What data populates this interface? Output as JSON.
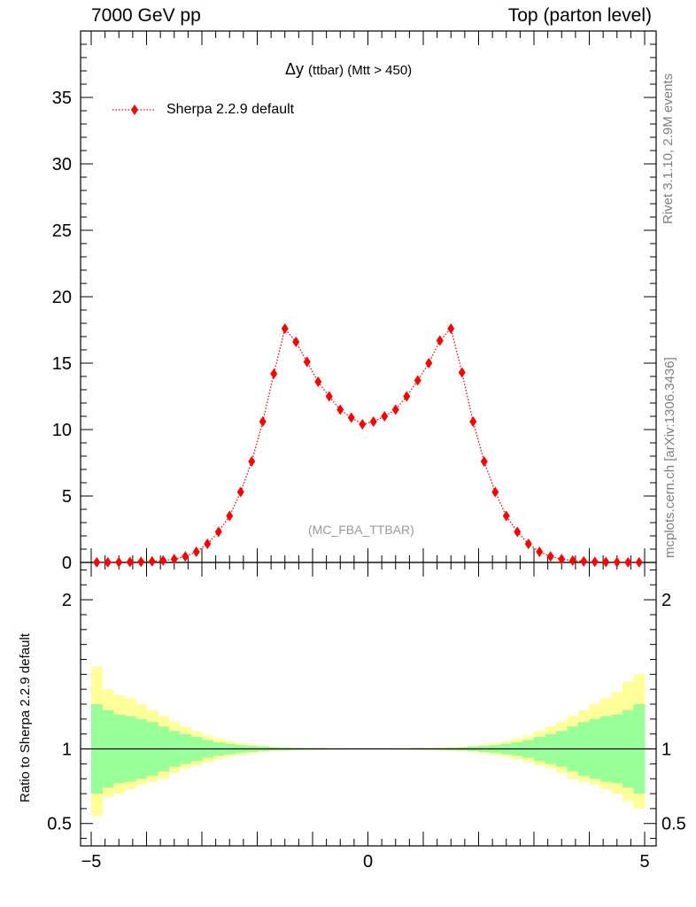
{
  "header": {
    "left": "7000 GeV pp",
    "right": "Top (parton level)"
  },
  "side": {
    "rivet": "Rivet 3.1.10,  2.9M events",
    "mcplots": "mcplots.cern.ch [arXiv:1306.3436]"
  },
  "title": {
    "main": "Δy",
    "rest": "(ttbar) (Mtt > 450)"
  },
  "watermark": "(MC_FBA_TTBAR)",
  "colors": {
    "marker": "#ff0000",
    "band_inner": "#99ff99",
    "band_outer": "#ffff99",
    "axis": "#000000"
  },
  "chart_data": [
    {
      "type": "line",
      "name": "main",
      "xlim": [
        -5,
        5
      ],
      "ylim": [
        0,
        40
      ],
      "yticks": [
        0,
        5,
        10,
        15,
        20,
        25,
        30,
        35
      ],
      "legend_position": "top-left",
      "series": [
        {
          "name": "Sherpa 2.2.9 default",
          "marker": "diamond",
          "line": "dotted",
          "x": [
            -4.9,
            -4.7,
            -4.5,
            -4.3,
            -4.1,
            -3.9,
            -3.7,
            -3.5,
            -3.3,
            -3.1,
            -2.9,
            -2.7,
            -2.5,
            -2.3,
            -2.1,
            -1.9,
            -1.7,
            -1.5,
            -1.3,
            -1.1,
            -0.9,
            -0.7,
            -0.5,
            -0.3,
            -0.1,
            0.1,
            0.3,
            0.5,
            0.7,
            0.9,
            1.1,
            1.3,
            1.5,
            1.7,
            1.9,
            2.1,
            2.3,
            2.5,
            2.7,
            2.9,
            3.1,
            3.3,
            3.5,
            3.7,
            3.9,
            4.1,
            4.3,
            4.5,
            4.7,
            4.9
          ],
          "values": [
            0.01,
            0.01,
            0.02,
            0.03,
            0.05,
            0.08,
            0.14,
            0.25,
            0.45,
            0.8,
            1.4,
            2.3,
            3.5,
            5.3,
            7.6,
            10.6,
            14.2,
            17.6,
            16.6,
            15.1,
            13.6,
            12.5,
            11.5,
            10.9,
            10.4,
            10.6,
            11.0,
            11.5,
            12.5,
            13.7,
            15.0,
            16.7,
            17.6,
            14.3,
            10.6,
            7.6,
            5.3,
            3.5,
            2.3,
            1.4,
            0.8,
            0.45,
            0.25,
            0.14,
            0.08,
            0.05,
            0.03,
            0.02,
            0.01,
            0.01
          ]
        }
      ]
    },
    {
      "type": "area",
      "name": "ratio",
      "ylabel": "Ratio to Sherpa 2.2.9 default",
      "xlim": [
        -5,
        5
      ],
      "ylim": [
        0.35,
        2.25
      ],
      "yticks": [
        0.5,
        1,
        2
      ],
      "xticks": [
        -5,
        0,
        5
      ],
      "bin_edges": [
        -5.0,
        -4.8,
        -4.6,
        -4.4,
        -4.2,
        -4.0,
        -3.8,
        -3.6,
        -3.4,
        -3.2,
        -3.0,
        -2.8,
        -2.6,
        -2.4,
        -2.2,
        -2.0,
        -1.8,
        -1.6,
        -1.4,
        -1.2,
        -1.0,
        -0.8,
        -0.6,
        -0.4,
        -0.2,
        0.0,
        0.2,
        0.4,
        0.6,
        0.8,
        1.0,
        1.2,
        1.4,
        1.6,
        1.8,
        2.0,
        2.2,
        2.4,
        2.6,
        2.8,
        3.0,
        3.2,
        3.4,
        3.6,
        3.8,
        4.0,
        4.2,
        4.4,
        4.6,
        4.8,
        5.0
      ],
      "reference_line": 1,
      "series": [
        {
          "name": "inner band",
          "lower": [
            0.7,
            0.74,
            0.77,
            0.78,
            0.8,
            0.82,
            0.85,
            0.88,
            0.9,
            0.92,
            0.94,
            0.955,
            0.965,
            0.975,
            0.98,
            0.985,
            0.99,
            0.992,
            0.994,
            0.995,
            0.996,
            0.997,
            0.997,
            0.998,
            0.998,
            0.998,
            0.998,
            0.997,
            0.997,
            0.996,
            0.995,
            0.994,
            0.992,
            0.99,
            0.985,
            0.98,
            0.975,
            0.965,
            0.955,
            0.94,
            0.92,
            0.9,
            0.88,
            0.85,
            0.82,
            0.8,
            0.78,
            0.77,
            0.74,
            0.7
          ],
          "upper": [
            1.3,
            1.26,
            1.23,
            1.22,
            1.2,
            1.18,
            1.15,
            1.12,
            1.1,
            1.08,
            1.06,
            1.045,
            1.035,
            1.025,
            1.02,
            1.015,
            1.01,
            1.008,
            1.006,
            1.005,
            1.004,
            1.003,
            1.003,
            1.002,
            1.002,
            1.002,
            1.002,
            1.003,
            1.003,
            1.004,
            1.005,
            1.006,
            1.008,
            1.01,
            1.015,
            1.02,
            1.025,
            1.035,
            1.045,
            1.06,
            1.08,
            1.1,
            1.12,
            1.15,
            1.18,
            1.2,
            1.22,
            1.23,
            1.26,
            1.3
          ]
        },
        {
          "name": "outer band",
          "lower": [
            0.55,
            0.68,
            0.7,
            0.73,
            0.76,
            0.78,
            0.8,
            0.84,
            0.87,
            0.89,
            0.91,
            0.93,
            0.95,
            0.96,
            0.97,
            0.98,
            0.985,
            0.988,
            0.99,
            0.992,
            0.994,
            0.995,
            0.996,
            0.997,
            0.997,
            0.997,
            0.997,
            0.996,
            0.995,
            0.994,
            0.992,
            0.99,
            0.988,
            0.985,
            0.98,
            0.97,
            0.96,
            0.95,
            0.93,
            0.91,
            0.89,
            0.87,
            0.84,
            0.8,
            0.78,
            0.76,
            0.73,
            0.7,
            0.65,
            0.6
          ],
          "upper": [
            1.55,
            1.4,
            1.36,
            1.34,
            1.3,
            1.26,
            1.22,
            1.18,
            1.15,
            1.12,
            1.09,
            1.07,
            1.05,
            1.04,
            1.03,
            1.02,
            1.015,
            1.012,
            1.01,
            1.008,
            1.006,
            1.005,
            1.004,
            1.003,
            1.003,
            1.003,
            1.003,
            1.004,
            1.005,
            1.006,
            1.008,
            1.01,
            1.012,
            1.015,
            1.02,
            1.03,
            1.04,
            1.05,
            1.07,
            1.09,
            1.12,
            1.15,
            1.18,
            1.22,
            1.26,
            1.3,
            1.34,
            1.38,
            1.45,
            1.5
          ]
        }
      ]
    }
  ]
}
